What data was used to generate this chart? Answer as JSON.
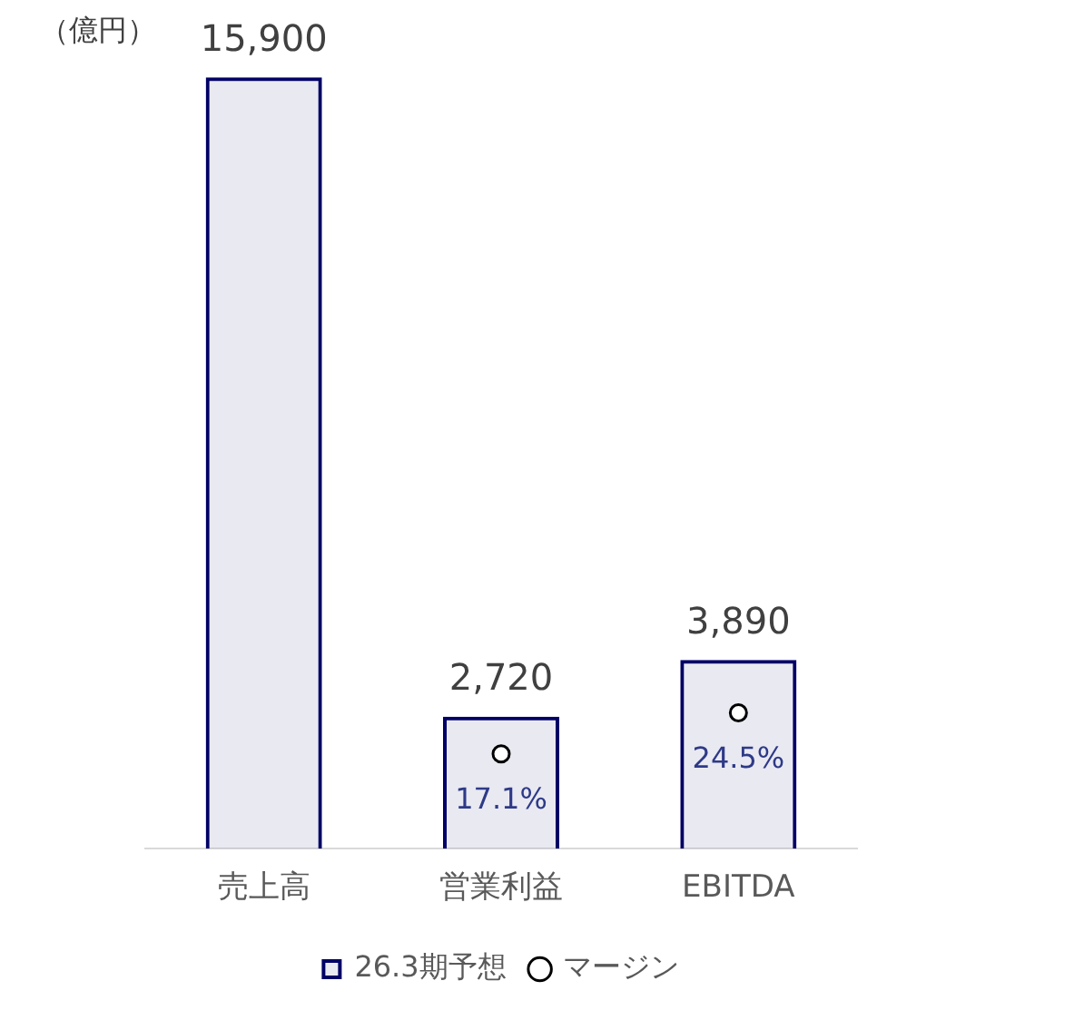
{
  "chart_data": {
    "type": "bar",
    "ylabel": "（億円）",
    "categories": [
      "売上高",
      "営業利益",
      "EBITDA"
    ],
    "series": [
      {
        "name": "26.3期予想",
        "color": "#000066",
        "values": [
          15900,
          2720,
          3890
        ],
        "value_labels": [
          "15,900",
          "2,720",
          "3,890"
        ]
      },
      {
        "name": "マージン",
        "type": "scatter",
        "axis": "y2",
        "color": "#000000",
        "marker": "circle",
        "values": [
          null,
          17.1,
          24.5
        ],
        "value_labels": [
          null,
          "17.1%",
          "24.5%"
        ]
      }
    ],
    "tick_labels": "x",
    "grid": false,
    "legend": "bottom"
  }
}
